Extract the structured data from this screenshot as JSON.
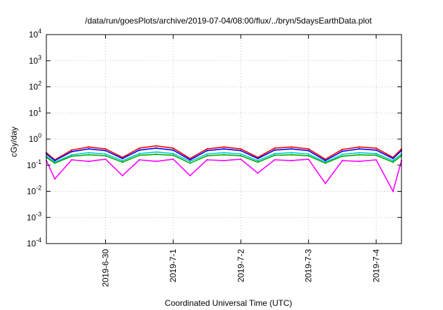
{
  "chart_data": {
    "type": "line",
    "title": "/data/run/goesPlots/archive/2019-07-04/08:00/flux/../bryn/5daysEarthData.plot",
    "xlabel": "Coordinated Universal Time (UTC)",
    "ylabel": "cGy/day",
    "yscale": "log",
    "ylim": [
      0.0001,
      10000
    ],
    "y_ticks": [
      {
        "mant": "10",
        "exp": "-4",
        "value": 0.0001
      },
      {
        "mant": "10",
        "exp": "-3",
        "value": 0.001
      },
      {
        "mant": "10",
        "exp": "-2",
        "value": 0.01
      },
      {
        "mant": "10",
        "exp": "-1",
        "value": 0.1
      },
      {
        "mant": "10",
        "exp": "0",
        "value": 1
      },
      {
        "mant": "10",
        "exp": "1",
        "value": 10
      },
      {
        "mant": "10",
        "exp": "2",
        "value": 100
      },
      {
        "mant": "10",
        "exp": "3",
        "value": 1000
      },
      {
        "mant": "10",
        "exp": "4",
        "value": 10000
      }
    ],
    "xlim": [
      "2019-06-29T03:00",
      "2019-07-04T09:00"
    ],
    "x_ticks": [
      "2019-6-30",
      "2019-7-1",
      "2019-7-2",
      "2019-7-3",
      "2019-7-4"
    ],
    "grid": true,
    "legend": "none",
    "series": [
      {
        "color": "#ff0000",
        "x": [
          "2019-06-29T03:00",
          "2019-06-29T06:00",
          "2019-06-29T12:00",
          "2019-06-29T18:00",
          "2019-06-30T00:00",
          "2019-06-30T06:00",
          "2019-06-30T12:00",
          "2019-06-30T18:00",
          "2019-07-01T00:00",
          "2019-07-01T06:00",
          "2019-07-01T12:00",
          "2019-07-01T18:00",
          "2019-07-02T00:00",
          "2019-07-02T06:00",
          "2019-07-02T12:00",
          "2019-07-02T18:00",
          "2019-07-03T00:00",
          "2019-07-03T06:00",
          "2019-07-03T12:00",
          "2019-07-03T18:00",
          "2019-07-04T00:00",
          "2019-07-04T06:00",
          "2019-07-04T09:00"
        ],
        "values": [
          0.3,
          0.16,
          0.38,
          0.5,
          0.42,
          0.2,
          0.45,
          0.55,
          0.45,
          0.18,
          0.42,
          0.5,
          0.42,
          0.2,
          0.45,
          0.5,
          0.42,
          0.17,
          0.4,
          0.5,
          0.45,
          0.2,
          0.42
        ]
      },
      {
        "color": "#0000ff",
        "x": [
          "2019-06-29T03:00",
          "2019-06-29T06:00",
          "2019-06-29T12:00",
          "2019-06-29T18:00",
          "2019-06-30T00:00",
          "2019-06-30T06:00",
          "2019-06-30T12:00",
          "2019-06-30T18:00",
          "2019-07-01T00:00",
          "2019-07-01T06:00",
          "2019-07-01T12:00",
          "2019-07-01T18:00",
          "2019-07-02T00:00",
          "2019-07-02T06:00",
          "2019-07-02T12:00",
          "2019-07-02T18:00",
          "2019-07-03T00:00",
          "2019-07-03T06:00",
          "2019-07-03T12:00",
          "2019-07-03T18:00",
          "2019-07-04T00:00",
          "2019-07-04T06:00",
          "2019-07-04T09:00"
        ],
        "values": [
          0.27,
          0.15,
          0.33,
          0.42,
          0.36,
          0.18,
          0.38,
          0.45,
          0.38,
          0.16,
          0.36,
          0.42,
          0.36,
          0.18,
          0.38,
          0.42,
          0.36,
          0.15,
          0.34,
          0.42,
          0.38,
          0.18,
          0.36
        ]
      },
      {
        "color": "#00cccc",
        "x": [
          "2019-06-29T03:00",
          "2019-06-29T06:00",
          "2019-06-29T12:00",
          "2019-06-29T18:00",
          "2019-06-30T00:00",
          "2019-06-30T06:00",
          "2019-06-30T12:00",
          "2019-06-30T18:00",
          "2019-07-01T00:00",
          "2019-07-01T06:00",
          "2019-07-01T12:00",
          "2019-07-01T18:00",
          "2019-07-02T00:00",
          "2019-07-02T06:00",
          "2019-07-02T12:00",
          "2019-07-02T18:00",
          "2019-07-03T00:00",
          "2019-07-03T06:00",
          "2019-07-03T12:00",
          "2019-07-03T18:00",
          "2019-07-04T00:00",
          "2019-07-04T06:00",
          "2019-07-04T09:00"
        ],
        "values": [
          0.22,
          0.13,
          0.25,
          0.3,
          0.27,
          0.15,
          0.28,
          0.32,
          0.28,
          0.14,
          0.27,
          0.3,
          0.27,
          0.15,
          0.28,
          0.3,
          0.27,
          0.13,
          0.26,
          0.3,
          0.28,
          0.15,
          0.27
        ]
      },
      {
        "color": "#00aa00",
        "x": [
          "2019-06-29T03:00",
          "2019-06-29T06:00",
          "2019-06-29T12:00",
          "2019-06-29T18:00",
          "2019-06-30T00:00",
          "2019-06-30T06:00",
          "2019-06-30T12:00",
          "2019-06-30T18:00",
          "2019-07-01T00:00",
          "2019-07-01T06:00",
          "2019-07-01T12:00",
          "2019-07-01T18:00",
          "2019-07-02T00:00",
          "2019-07-02T06:00",
          "2019-07-02T12:00",
          "2019-07-02T18:00",
          "2019-07-03T00:00",
          "2019-07-03T06:00",
          "2019-07-03T12:00",
          "2019-07-03T18:00",
          "2019-07-04T00:00",
          "2019-07-04T06:00",
          "2019-07-04T09:00"
        ],
        "values": [
          0.2,
          0.12,
          0.22,
          0.25,
          0.23,
          0.13,
          0.24,
          0.26,
          0.24,
          0.12,
          0.23,
          0.25,
          0.23,
          0.13,
          0.24,
          0.25,
          0.23,
          0.12,
          0.22,
          0.25,
          0.24,
          0.13,
          0.23
        ]
      },
      {
        "color": "#ff00ff",
        "x": [
          "2019-06-29T03:00",
          "2019-06-29T06:00",
          "2019-06-29T12:00",
          "2019-06-29T18:00",
          "2019-06-30T00:00",
          "2019-06-30T06:00",
          "2019-06-30T12:00",
          "2019-06-30T18:00",
          "2019-07-01T00:00",
          "2019-07-01T06:00",
          "2019-07-01T12:00",
          "2019-07-01T18:00",
          "2019-07-02T00:00",
          "2019-07-02T06:00",
          "2019-07-02T12:00",
          "2019-07-02T18:00",
          "2019-07-03T00:00",
          "2019-07-03T06:00",
          "2019-07-03T12:00",
          "2019-07-03T18:00",
          "2019-07-04T00:00",
          "2019-07-04T06:00",
          "2019-07-04T09:00"
        ],
        "values": [
          0.15,
          0.03,
          0.16,
          0.14,
          0.17,
          0.04,
          0.16,
          0.14,
          0.17,
          0.04,
          0.16,
          0.15,
          0.17,
          0.05,
          0.16,
          0.15,
          0.17,
          0.02,
          0.15,
          0.14,
          0.16,
          0.01,
          0.15
        ]
      }
    ]
  }
}
